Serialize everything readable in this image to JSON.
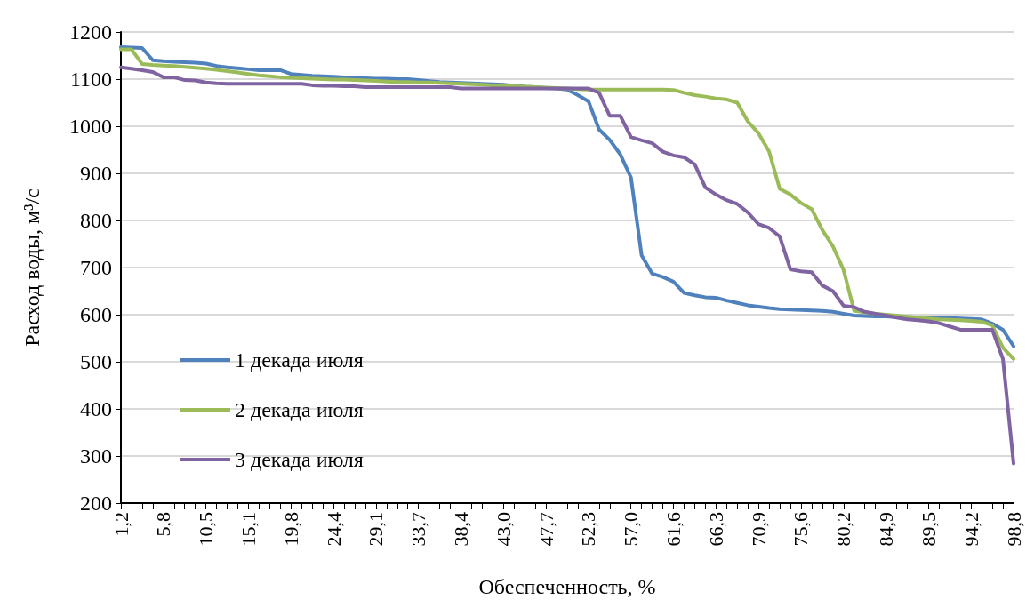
{
  "chart_data": {
    "type": "line",
    "xlabel": "Обеспеченность, %",
    "ylabel": "Расход воды, м³/с",
    "categories": [
      "1,2",
      null,
      null,
      null,
      "5,8",
      null,
      null,
      null,
      "10,5",
      null,
      null,
      null,
      "15,1",
      null,
      null,
      null,
      "19,8",
      null,
      null,
      null,
      "24,4",
      null,
      null,
      null,
      "29,1",
      null,
      null,
      null,
      "33,7",
      null,
      null,
      null,
      "38,4",
      null,
      null,
      null,
      "43,0",
      null,
      null,
      null,
      "47,7",
      null,
      null,
      null,
      "52,3",
      null,
      null,
      null,
      "57,0",
      null,
      null,
      null,
      "61,6",
      null,
      null,
      null,
      "66,3",
      null,
      null,
      null,
      "70,9",
      null,
      null,
      null,
      "75,6",
      null,
      null,
      null,
      "80,2",
      null,
      null,
      null,
      "84,9",
      null,
      null,
      null,
      "89,5",
      null,
      null,
      null,
      "94,2",
      null,
      null,
      null,
      "98,8"
    ],
    "series": [
      {
        "name": "1 декада июля",
        "color": "#4f81bd",
        "values": [
          1168,
          1167,
          1166,
          1140,
          1138,
          1137,
          1136,
          1135,
          1133,
          1128,
          1125,
          1123,
          1121,
          1119,
          1119,
          1119,
          1111,
          1109,
          1107,
          1106,
          1105,
          1104,
          1103,
          1102,
          1101,
          1101,
          1100,
          1100,
          1098,
          1096,
          1094,
          1093,
          1092,
          1091,
          1090,
          1089,
          1088,
          1086,
          1084,
          1083,
          1081,
          1080,
          1078,
          1066,
          1053,
          993,
          971,
          940,
          891,
          726,
          687,
          680,
          670,
          646,
          641,
          637,
          636,
          630,
          625,
          620,
          617,
          614,
          612,
          611,
          610,
          609,
          608,
          606,
          602,
          598,
          597,
          596,
          596,
          595,
          595,
          594,
          594,
          593,
          593,
          592,
          591,
          590,
          581,
          568,
          533
        ]
      },
      {
        "name": "2 декада июля",
        "color": "#9bbb59",
        "values": [
          1163,
          1163,
          1132,
          1130,
          1129,
          1128,
          1126,
          1124,
          1122,
          1120,
          1117,
          1114,
          1111,
          1108,
          1106,
          1104,
          1103,
          1102,
          1101,
          1100,
          1099,
          1099,
          1098,
          1097,
          1096,
          1095,
          1094,
          1094,
          1093,
          1093,
          1092,
          1091,
          1090,
          1089,
          1088,
          1087,
          1086,
          1085,
          1084,
          1083,
          1082,
          1081,
          1080,
          1079,
          1078,
          1078,
          1078,
          1078,
          1078,
          1078,
          1078,
          1078,
          1077,
          1071,
          1066,
          1063,
          1059,
          1057,
          1050,
          1010,
          985,
          946,
          867,
          855,
          837,
          824,
          780,
          745,
          695,
          608,
          605,
          602,
          600,
          598,
          596,
          594,
          592,
          590,
          589,
          588,
          587,
          585,
          577,
          530,
          506
        ]
      },
      {
        "name": "3 декада июля",
        "color": "#8064a2",
        "values": [
          1125,
          1122,
          1119,
          1115,
          1104,
          1104,
          1098,
          1097,
          1093,
          1091,
          1090,
          1090,
          1090,
          1090,
          1090,
          1090,
          1090,
          1090,
          1087,
          1086,
          1086,
          1085,
          1085,
          1083,
          1083,
          1083,
          1083,
          1083,
          1083,
          1083,
          1083,
          1083,
          1080,
          1080,
          1080,
          1080,
          1080,
          1080,
          1080,
          1080,
          1080,
          1080,
          1080,
          1080,
          1080,
          1071,
          1022,
          1022,
          977,
          970,
          964,
          946,
          938,
          934,
          919,
          870,
          855,
          843,
          835,
          817,
          792,
          784,
          766,
          696,
          692,
          690,
          662,
          650,
          619,
          616,
          606,
          602,
          598,
          594,
          590,
          588,
          586,
          582,
          575,
          568,
          568,
          568,
          568,
          506,
          284
        ]
      }
    ],
    "ylim": [
      200,
      1200
    ],
    "yticks": [
      200,
      300,
      400,
      500,
      600,
      700,
      800,
      900,
      1000,
      1100,
      1200
    ],
    "grid": "y",
    "legend": "left",
    "marker": "none",
    "line_style": "solid"
  }
}
